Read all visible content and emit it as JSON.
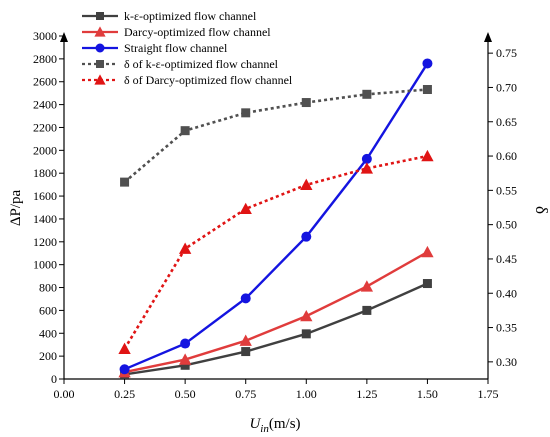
{
  "chart_data": {
    "type": "line",
    "xlabel": {
      "main": "U",
      "sub": "in",
      "units": "(m/s)"
    },
    "ylabel": "ΔP/pa",
    "y2label": "δ",
    "xlim": [
      0.0,
      1.75
    ],
    "ylim": [
      0,
      3000
    ],
    "y2lim": [
      0.275,
      0.775
    ],
    "x_ticks": [
      0.0,
      0.25,
      0.5,
      0.75,
      1.0,
      1.25,
      1.5,
      1.75
    ],
    "x_tick_labels": [
      "0.00",
      "0.25",
      "0.50",
      "0.75",
      "1.00",
      "1.25",
      "1.50",
      "1.75"
    ],
    "y_ticks": [
      0,
      200,
      400,
      600,
      800,
      1000,
      1200,
      1400,
      1600,
      1800,
      2000,
      2200,
      2400,
      2600,
      2800,
      3000
    ],
    "y_tick_labels": [
      "0",
      "200",
      "400",
      "600",
      "800",
      "1000",
      "1200",
      "1400",
      "1600",
      "1800",
      "2000",
      "2200",
      "2400",
      "2600",
      "2800",
      "3000"
    ],
    "y2_ticks": [
      0.3,
      0.35,
      0.4,
      0.45,
      0.5,
      0.55,
      0.6,
      0.65,
      0.7,
      0.75
    ],
    "y2_tick_labels": [
      "0.30",
      "0.35",
      "0.40",
      "0.45",
      "0.50",
      "0.55",
      "0.60",
      "0.65",
      "0.70",
      "0.75"
    ],
    "grid": false,
    "legend_position": "top-left",
    "x": [
      0.25,
      0.5,
      0.75,
      1.0,
      1.25,
      1.5
    ],
    "series": [
      {
        "name": "k-ε-optimized flow channel",
        "axis": "left",
        "values": [
          40,
          120,
          240,
          395,
          600,
          835
        ],
        "color": "#404040",
        "marker": "square",
        "dash": "solid"
      },
      {
        "name": "Darcy-optimized flow channel",
        "axis": "left",
        "values": [
          60,
          170,
          335,
          550,
          810,
          1110
        ],
        "color": "#e03c3c",
        "marker": "triangle",
        "dash": "solid"
      },
      {
        "name": "Straight flow channel",
        "axis": "left",
        "values": [
          85,
          310,
          705,
          1245,
          1925,
          2760
        ],
        "color": "#1414e0",
        "marker": "circle",
        "dash": "solid"
      },
      {
        "name": "δ of k-ε-optimized flow channel",
        "axis": "right",
        "values": [
          0.562,
          0.637,
          0.663,
          0.678,
          0.69,
          0.697
        ],
        "color": "#505050",
        "marker": "square",
        "dash": "dotted"
      },
      {
        "name": "δ of Darcy-optimized flow channel",
        "axis": "right",
        "values": [
          0.319,
          0.465,
          0.523,
          0.558,
          0.582,
          0.6
        ],
        "color": "#e01414",
        "marker": "triangle",
        "dash": "dotted"
      }
    ]
  }
}
